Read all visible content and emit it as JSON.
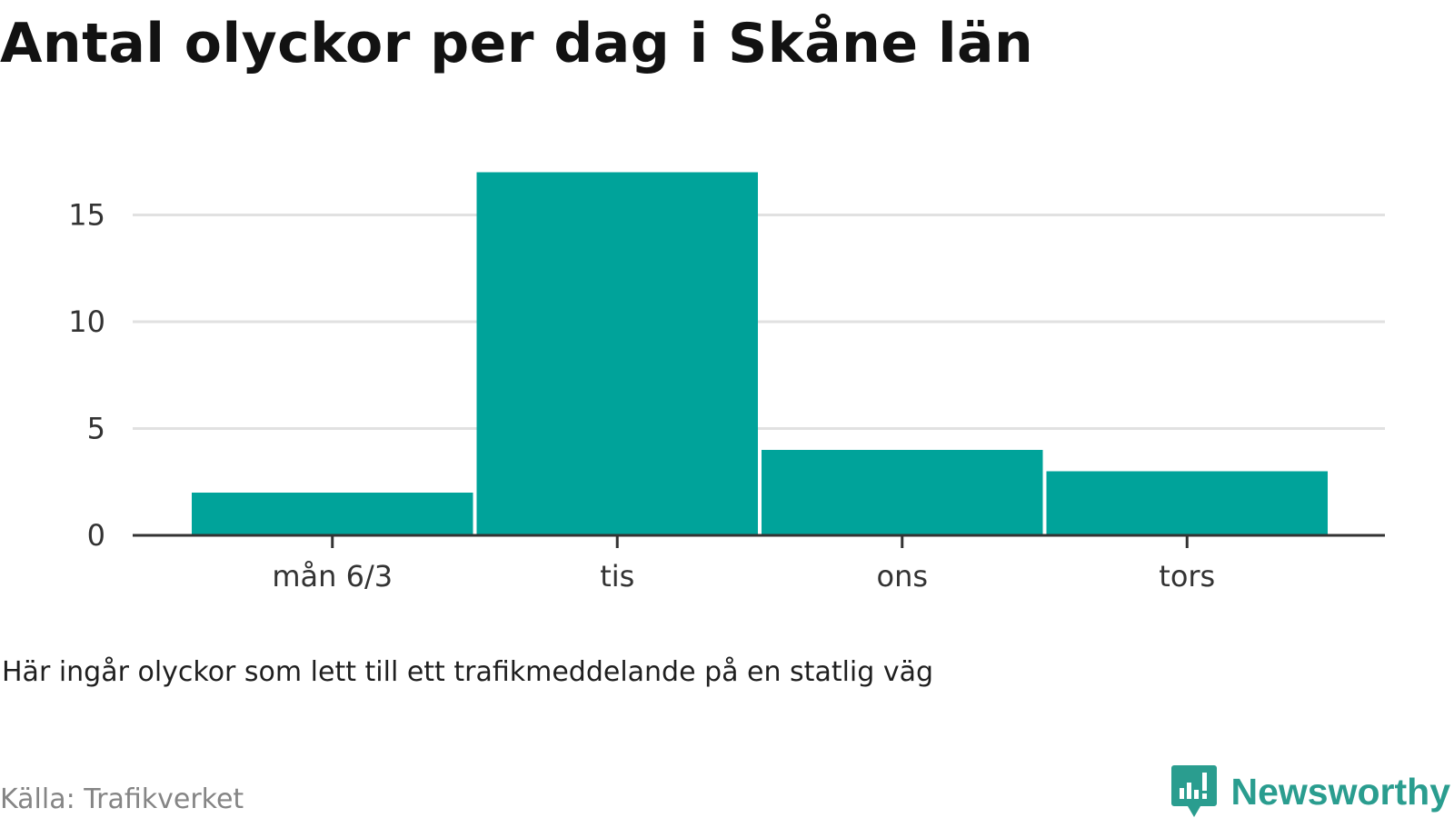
{
  "title": "Antal olyckor per dag i Skåne län",
  "note": "Här ingår olyckor som lett till ett trafikmeddelande på en statlig väg",
  "source": "Källa: Trafikverket",
  "logo": {
    "text": "Newsworthy",
    "icon": "newsworthy-logo-icon",
    "color": "#2a9d8f"
  },
  "chart_data": {
    "type": "bar",
    "categories": [
      "mån 6/3",
      "tis",
      "ons",
      "tors"
    ],
    "values": [
      2,
      17,
      4,
      3
    ],
    "yticks": [
      0,
      5,
      10,
      15
    ],
    "ylim": [
      0,
      17
    ],
    "xlabel": "",
    "ylabel": "",
    "grid": true,
    "bar_color": "#00a39a",
    "grid_color": "#e1e1e1",
    "axis_color": "#333333"
  }
}
